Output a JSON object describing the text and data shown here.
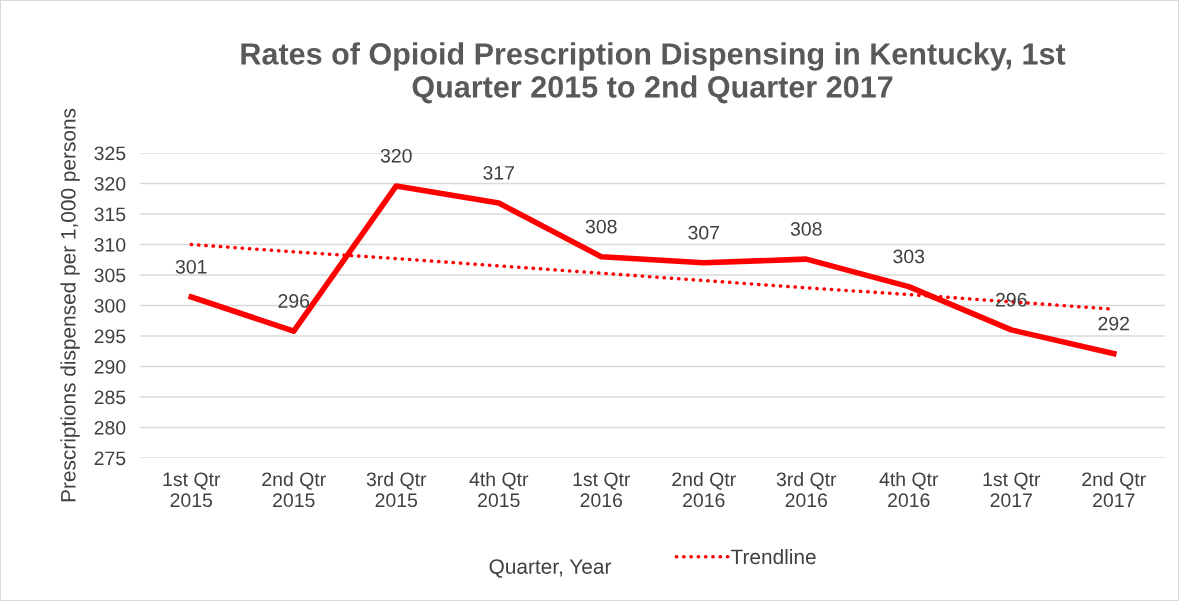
{
  "chart_data": {
    "type": "line",
    "title": "Rates of Opioid Prescription Dispensing in Kentucky, 1st\nQuarter 2015 to 2nd Quarter 2017",
    "xlabel": "Quarter, Year",
    "ylabel": "Prescriptions dispensed per 1,000 persons",
    "categories": [
      "1st Qtr\n2015",
      "2nd Qtr\n2015",
      "3rd Qtr\n2015",
      "4th Qtr\n2015",
      "1st Qtr\n2016",
      "2nd Qtr\n2016",
      "3rd Qtr\n2016",
      "4th Qtr\n2016",
      "1st Qtr\n2017",
      "2nd Qtr\n2017"
    ],
    "series": [
      {
        "color": "#ff0000",
        "line_style": "solid",
        "values": [
          301.4,
          295.8,
          319.6,
          316.8,
          308.0,
          307.0,
          307.6,
          303.1,
          296.0,
          292.1
        ],
        "value_labels": [
          "301",
          "296",
          "320",
          "317",
          "308",
          "307",
          "308",
          "303",
          "296",
          "292"
        ]
      },
      {
        "name": "Trendline",
        "color": "#ff0000",
        "line_style": "dotted",
        "values": [
          310.0,
          308.8,
          307.7,
          306.5,
          305.3,
          304.1,
          302.9,
          301.8,
          300.6,
          299.4
        ]
      }
    ],
    "ylim": [
      275,
      325
    ],
    "yticks": [
      275,
      280,
      285,
      290,
      295,
      300,
      305,
      310,
      315,
      320,
      325
    ],
    "grid": "y",
    "legend": "bottom",
    "marker": "none"
  }
}
